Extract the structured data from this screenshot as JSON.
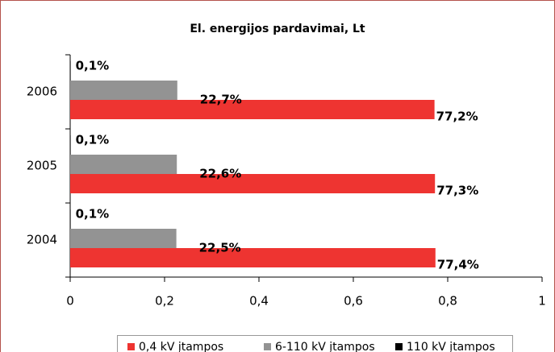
{
  "chart_data": {
    "type": "barh",
    "title": "El. energijos pardavimai, Lt",
    "categories": [
      "2004",
      "2005",
      "2006"
    ],
    "series": [
      {
        "name": "0,4 kV įtampos",
        "color": "#ee3431",
        "values": [
          0.774,
          0.773,
          0.772
        ],
        "value_labels": [
          "77,4%",
          "77,3%",
          "77,2%"
        ]
      },
      {
        "name": "6-110 kV įtampos",
        "color": "#939393",
        "values": [
          0.225,
          0.226,
          0.227
        ],
        "value_labels": [
          "22,5%",
          "22,6%",
          "22,7%"
        ]
      },
      {
        "name": "110 kV įtampos",
        "color": "#000000",
        "values": [
          0.001,
          0.001,
          0.001
        ],
        "value_labels": [
          "0,1%",
          "0,1%",
          "0,1%"
        ]
      }
    ],
    "xlim": [
      0,
      1
    ],
    "xticks": [
      0,
      {
        "value": 0.2,
        "label": "0,2"
      },
      {
        "value": 0.4,
        "label": "0,4"
      },
      {
        "value": 0.6,
        "label": "0,6"
      },
      {
        "value": 0.8,
        "label": "0,8"
      },
      1
    ],
    "legend": "bottom"
  }
}
